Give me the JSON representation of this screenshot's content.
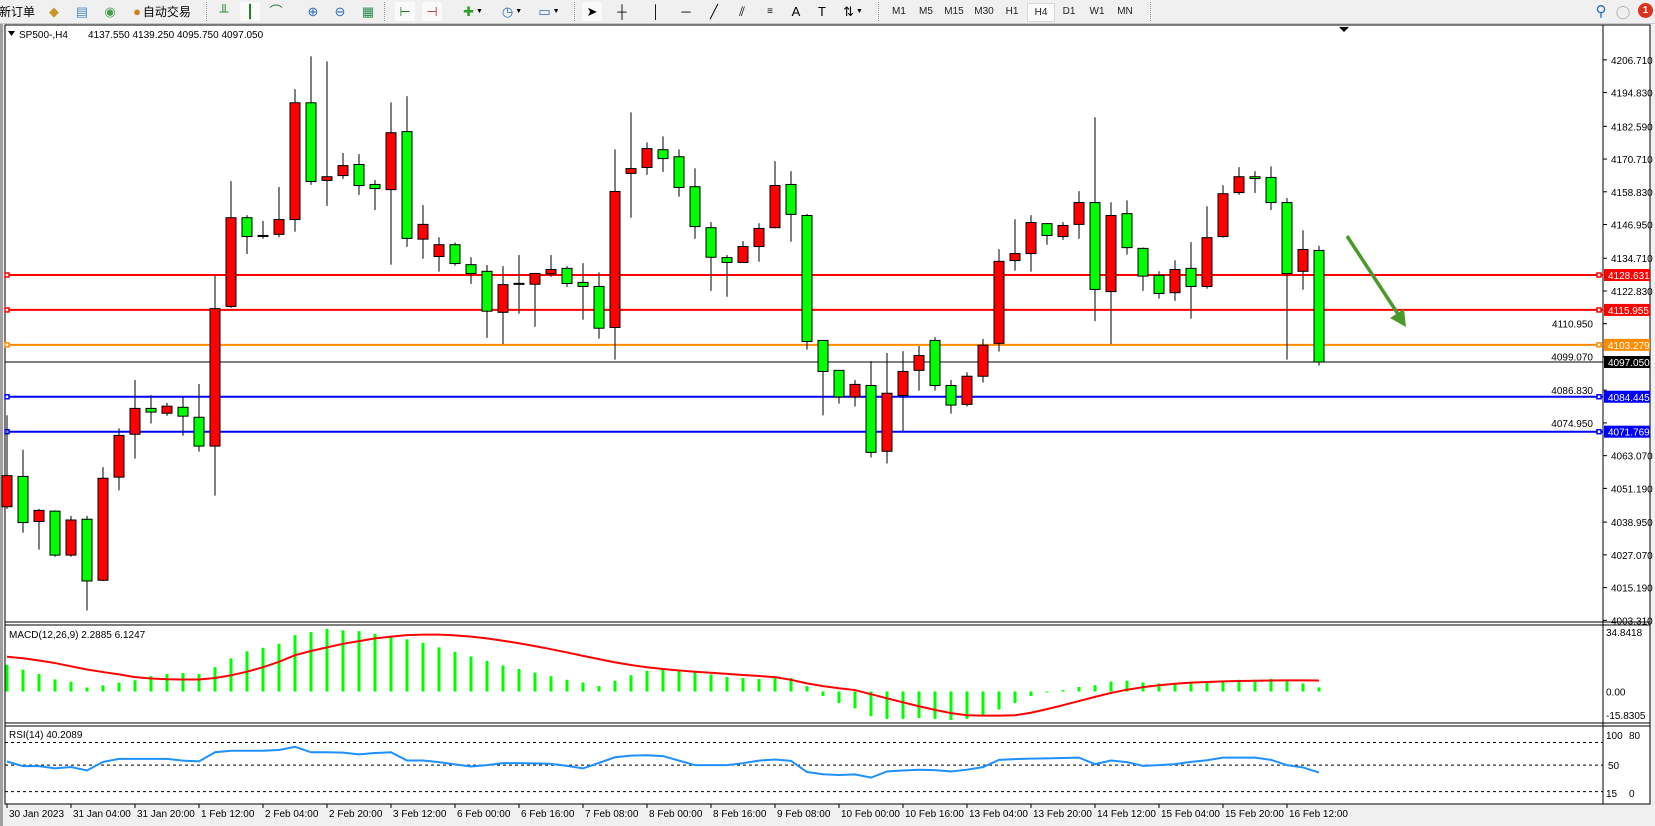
{
  "toolbar": {
    "new_order_label": "新订单",
    "autotrade_label": "自动交易",
    "timeframes": [
      "M1",
      "M5",
      "M15",
      "M30",
      "H1",
      "H4",
      "D1",
      "W1",
      "MN"
    ],
    "active_timeframe": "H4",
    "notification_count": "1"
  },
  "chart_header": {
    "symbol": "SP500-,H4",
    "ohlc": "4137.550 4139.250 4095.750 4097.050"
  },
  "macd": {
    "label": "MACD(12,26,9) 2.2885 6.1247",
    "axis_labels": [
      "34.8418",
      "0.00",
      "-15.8305"
    ]
  },
  "rsi": {
    "label": "RSI(14) 40.2089",
    "axis_labels": [
      "100",
      "80",
      "50",
      "15",
      "0"
    ]
  },
  "colors": {
    "bull_candle": "#ff0000",
    "bear_candle": "#00ff00",
    "macd_histogram": "#00ff00",
    "macd_signal": "#ff0000",
    "rsi_line": "#1e90ff",
    "arrow": "#4a9a2a"
  },
  "chart_data": {
    "type": "candlestick",
    "symbol": "SP500-",
    "timeframe": "H4",
    "ylim": [
      4003.31,
      4206.71
    ],
    "price_ticks": [
      "4206.710",
      "4194.830",
      "4182.590",
      "4170.710",
      "4158.830",
      "4146.950",
      "4134.710",
      "4122.830",
      "4110.950",
      "4099.070",
      "4086.830",
      "4074.950",
      "4063.070",
      "4051.190",
      "4038.950",
      "4027.070",
      "4015.190",
      "4003.310"
    ],
    "time_labels": [
      "30 Jan 2023",
      "31 Jan 04:00",
      "31 Jan 20:00",
      "1 Feb 12:00",
      "2 Feb 04:00",
      "2 Feb 20:00",
      "3 Feb 12:00",
      "6 Feb 00:00",
      "6 Feb 16:00",
      "7 Feb 08:00",
      "8 Feb 00:00",
      "8 Feb 16:00",
      "9 Feb 08:00",
      "10 Feb 00:00",
      "10 Feb 16:00",
      "13 Feb 04:00",
      "13 Feb 20:00",
      "14 Feb 12:00",
      "15 Feb 04:00",
      "15 Feb 20:00",
      "16 Feb 12:00"
    ],
    "ohlc": [
      [
        4044.54,
        4077.67,
        4043.74,
        4055.81
      ],
      [
        4055.54,
        4065.2,
        4035.16,
        4038.78
      ],
      [
        4039.18,
        4043.74,
        4028.99,
        4043.21
      ],
      [
        4042.94,
        4043.2,
        4026.4,
        4026.98
      ],
      [
        4026.98,
        4041.2,
        4026.4,
        4039.72
      ],
      [
        4039.99,
        4041.2,
        4006.86,
        4017.59
      ],
      [
        4017.86,
        4058.89,
        4017.6,
        4054.87
      ],
      [
        4055.27,
        4072.97,
        4050.45,
        4070.43
      ],
      [
        4070.83,
        4090.54,
        4061.98,
        4080.22
      ],
      [
        4080.22,
        4085.04,
        4074.72,
        4078.88
      ],
      [
        4078.47,
        4082.23,
        4077.53,
        4081.02
      ],
      [
        4080.62,
        4084.24,
        4070.29,
        4077.4
      ],
      [
        4077.0,
        4089.07,
        4064.53,
        4066.54
      ],
      [
        4066.54,
        4128.5,
        4048.57,
        4116.43
      ],
      [
        4117.23,
        4162.7,
        4116.7,
        4149.42
      ],
      [
        4149.42,
        4150.36,
        4136.27,
        4142.58
      ],
      [
        4142.98,
        4148.21,
        4141.77,
        4142.98
      ],
      [
        4143.38,
        4160.55,
        4142.31,
        4148.75
      ],
      [
        4148.75,
        4196.09,
        4144.32,
        4191.13
      ],
      [
        4191.13,
        4208.02,
        4161.35,
        4162.56
      ],
      [
        4162.96,
        4206.15,
        4153.71,
        4164.3
      ],
      [
        4164.71,
        4172.89,
        4163.5,
        4168.33
      ],
      [
        4168.73,
        4172.49,
        4157.73,
        4161.09
      ],
      [
        4161.49,
        4163.1,
        4152.23,
        4160.01
      ],
      [
        4159.61,
        4191.26,
        4132.39,
        4180.26
      ],
      [
        4180.67,
        4193.54,
        4138.82,
        4141.91
      ],
      [
        4141.64,
        4153.98,
        4134.53,
        4147.0
      ],
      [
        4135.34,
        4142.31,
        4129.84,
        4139.63
      ],
      [
        4139.63,
        4140.43,
        4131.98,
        4132.79
      ],
      [
        4132.39,
        4135.07,
        4125.41,
        4129.17
      ],
      [
        4129.97,
        4132.25,
        4105.83,
        4115.49
      ],
      [
        4115.09,
        4131.85,
        4103.55,
        4125.14
      ],
      [
        4125.6,
        4135.87,
        4114.55,
        4125.55
      ],
      [
        4125.28,
        4129.3,
        4109.86,
        4129.17
      ],
      [
        4129.03,
        4135.87,
        4127.96,
        4130.64
      ],
      [
        4131.04,
        4131.85,
        4124.34,
        4125.55
      ],
      [
        4125.95,
        4132.92,
        4112.4,
        4124.47
      ],
      [
        4124.47,
        4129.57,
        4105.56,
        4109.32
      ],
      [
        4109.59,
        4174.23,
        4097.92,
        4158.94
      ],
      [
        4165.51,
        4187.64,
        4149.42,
        4167.25
      ],
      [
        4167.66,
        4176.78,
        4164.97,
        4174.5
      ],
      [
        4174.09,
        4178.92,
        4166.05,
        4170.87
      ],
      [
        4171.55,
        4174.23,
        4157.06,
        4160.41
      ],
      [
        4160.68,
        4167.39,
        4141.77,
        4146.2
      ],
      [
        4145.8,
        4147.81,
        4122.87,
        4135.07
      ],
      [
        4134.93,
        4135.87,
        4120.72,
        4133.19
      ],
      [
        4133.19,
        4140.97,
        4133.0,
        4138.96
      ],
      [
        4138.96,
        4147.41,
        4133.46,
        4145.53
      ],
      [
        4145.8,
        4169.94,
        4145.6,
        4161.09
      ],
      [
        4161.49,
        4166.32,
        4140.7,
        4150.63
      ],
      [
        4150.22,
        4150.8,
        4101.54,
        4104.49
      ],
      [
        4104.89,
        4105.0,
        4077.67,
        4093.63
      ],
      [
        4094.03,
        4094.1,
        4081.96,
        4084.37
      ],
      [
        4084.37,
        4090.54,
        4080.89,
        4088.93
      ],
      [
        4088.53,
        4097.38,
        4062.38,
        4064.26
      ],
      [
        4064.66,
        4100.33,
        4060.23,
        4085.72
      ],
      [
        4084.91,
        4101.0,
        4072.04,
        4093.63
      ],
      [
        4094.03,
        4102.88,
        4086.65,
        4099.4
      ],
      [
        4104.89,
        4106.1,
        4086.65,
        4088.53
      ],
      [
        4088.53,
        4090.54,
        4078.34,
        4081.42
      ],
      [
        4081.69,
        4093.36,
        4080.89,
        4091.89
      ],
      [
        4091.89,
        4105.43,
        4089.6,
        4103.15
      ],
      [
        4103.82,
        4138.02,
        4100.87,
        4133.59
      ],
      [
        4133.86,
        4148.88,
        4130.24,
        4136.41
      ],
      [
        4136.41,
        4150.36,
        4129.84,
        4147.67
      ],
      [
        4147.27,
        4147.4,
        4139.63,
        4142.98
      ],
      [
        4142.58,
        4147.81,
        4141.37,
        4146.6
      ],
      [
        4147.0,
        4159.07,
        4141.77,
        4154.92
      ],
      [
        4154.92,
        4185.9,
        4111.87,
        4123.4
      ],
      [
        4122.6,
        4155.05,
        4103.55,
        4150.22
      ],
      [
        4150.89,
        4155.72,
        4136.01,
        4138.56
      ],
      [
        4138.29,
        4138.6,
        4122.87,
        4128.23
      ],
      [
        4128.5,
        4129.97,
        4120.05,
        4121.93
      ],
      [
        4122.2,
        4134.0,
        4119.24,
        4130.64
      ],
      [
        4131.04,
        4140.57,
        4112.81,
        4124.47
      ],
      [
        4124.47,
        4153.58,
        4123.67,
        4142.18
      ],
      [
        4142.58,
        4161.22,
        4142.2,
        4158.13
      ],
      [
        4158.54,
        4167.79,
        4157.73,
        4164.3
      ],
      [
        4164.3,
        4166.32,
        4158.4,
        4163.63
      ],
      [
        4164.04,
        4168.06,
        4152.23,
        4154.92
      ],
      [
        4154.92,
        4156.53,
        4097.92,
        4129.17
      ],
      [
        4129.97,
        4144.86,
        4123.27,
        4137.88
      ],
      [
        4137.55,
        4139.25,
        4095.75,
        4097.05
      ]
    ],
    "horizontal_lines": [
      {
        "price": "4128.631",
        "color": "#ff0000"
      },
      {
        "price": "4115.955",
        "color": "#ff0000"
      },
      {
        "price": "4103.279",
        "color": "#ff8c00"
      },
      {
        "price": "4084.445",
        "color": "#0000ff"
      },
      {
        "price": "4071.769",
        "color": "#0000ff"
      }
    ],
    "last_price": {
      "price": "4097.050",
      "color": "#000000"
    },
    "macd_histogram": [
      14.8,
      12.1,
      9.7,
      6.7,
      5.4,
      2.2,
      3.4,
      4.9,
      6.3,
      8.5,
      9.7,
      10.3,
      9.7,
      13.5,
      18.4,
      22.3,
      24.3,
      26.5,
      31.3,
      33.0,
      34.8,
      34.0,
      33.5,
      32.0,
      31.0,
      29.0,
      27.0,
      24.5,
      22.0,
      19.5,
      17.0,
      14.5,
      12.5,
      10.5,
      8.5,
      6.5,
      5.0,
      3.0,
      6.0,
      9.0,
      11.5,
      12.5,
      12.0,
      11.0,
      9.5,
      8.0,
      7.5,
      7.0,
      8.0,
      7.5,
      3.0,
      -2.5,
      -6.4,
      -9.4,
      -13.7,
      -15.2,
      -15.2,
      -14.7,
      -15.2,
      -15.8,
      -15.2,
      -13.3,
      -10.0,
      -6.4,
      -2.5,
      -0.2,
      0.8,
      2.5,
      3.5,
      5.5,
      6.0,
      5.0,
      4.5,
      4.5,
      4.5,
      5.0,
      5.5,
      6.5,
      6.5,
      7.0,
      6.0,
      4.5,
      2.29
    ],
    "macd_signal": [
      19.3,
      18.5,
      17.2,
      15.8,
      14.0,
      12.2,
      10.8,
      9.5,
      8.0,
      7.2,
      6.8,
      6.7,
      6.7,
      7.5,
      9.0,
      11.0,
      13.5,
      16.5,
      20.2,
      22.5,
      24.5,
      26.5,
      28.0,
      29.5,
      30.5,
      31.3,
      31.6,
      31.6,
      31.2,
      30.5,
      29.5,
      28.2,
      26.8,
      25.2,
      23.5,
      21.7,
      19.8,
      18.0,
      16.2,
      14.7,
      13.5,
      12.5,
      11.7,
      11.0,
      10.4,
      9.8,
      9.2,
      8.6,
      8.0,
      6.5,
      4.5,
      3.0,
      1.8,
      0.8,
      -1.5,
      -3.8,
      -6.0,
      -8.2,
      -10.2,
      -12.0,
      -13.2,
      -13.4,
      -13.4,
      -13.2,
      -11.8,
      -9.8,
      -7.6,
      -5.3,
      -3.0,
      -0.8,
      1.0,
      2.4,
      3.5,
      4.3,
      4.9,
      5.3,
      5.6,
      5.8,
      6.0,
      6.1,
      6.2,
      6.2,
      6.12
    ],
    "macd_range": [
      -15.8305,
      34.8418
    ],
    "rsi_values": [
      54.8,
      48.7,
      48.7,
      45.7,
      47.5,
      43,
      54.3,
      58.3,
      58.3,
      58.3,
      58.3,
      56,
      55,
      67,
      69,
      69,
      69,
      70,
      74.3,
      67,
      67,
      66.5,
      64.3,
      66,
      67,
      56.1,
      56.1,
      54,
      51,
      48.3,
      50,
      52.6,
      52.6,
      52.4,
      51.7,
      49,
      45.7,
      53,
      60.4,
      62.6,
      63,
      62,
      56,
      50,
      50,
      50,
      52.6,
      56,
      57.4,
      55.7,
      40.9,
      38,
      37,
      37.8,
      33.5,
      41.7,
      43,
      43.9,
      43.5,
      41.7,
      44,
      47.4,
      57,
      58,
      58.7,
      59,
      59.5,
      60,
      51.3,
      56.1,
      54,
      49.1,
      50,
      51.3,
      54.3,
      56.5,
      60,
      60,
      60,
      57,
      50,
      47,
      40.2089
    ],
    "rsi_levels": [
      80,
      50,
      15
    ],
    "rsi_range": [
      0,
      100
    ]
  }
}
